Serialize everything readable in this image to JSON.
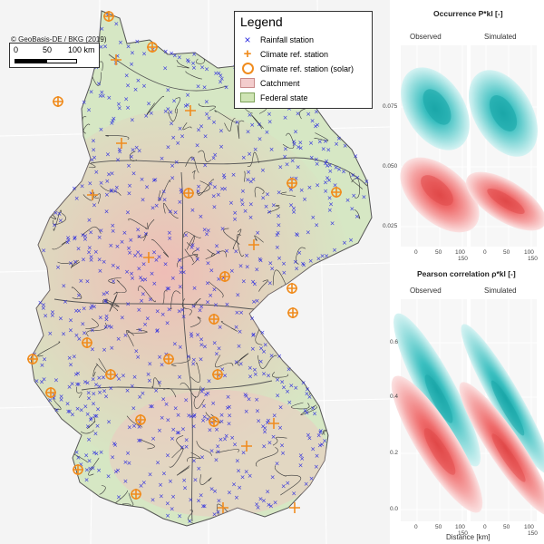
{
  "map": {
    "credit": "© GeoBasis-DE / BKG (2019)",
    "scale": {
      "l0": "0",
      "l1": "50",
      "l2": "100 km"
    },
    "legend": {
      "title": "Legend",
      "items": [
        {
          "label": "Rainfall station",
          "symbol": "x-icon",
          "color": "#2a2ae0"
        },
        {
          "label": "Climate ref. station",
          "symbol": "plus-icon",
          "color": "#f08c1e"
        },
        {
          "label": "Climate ref. station (solar)",
          "symbol": "circle-icon",
          "color": "#f08c1e"
        },
        {
          "label": "Catchment",
          "symbol": "pink-box-icon",
          "color": "#f3cccc"
        },
        {
          "label": "Federal state",
          "symbol": "green-box-icon",
          "color": "#cfe4b4"
        }
      ]
    },
    "colors": {
      "land": "#d6e7c4",
      "catchment": "#f0c8c4",
      "rain": "#2a2ae0",
      "climate": "#f08c1e"
    }
  },
  "panels": {
    "top": {
      "title": "Occurrence P*kl [-]",
      "strips": [
        "Observed",
        "Simulated"
      ],
      "yticks": [
        "0.075",
        "0.050",
        "0.025"
      ],
      "xticks": [
        "0",
        "50",
        "100",
        "150"
      ]
    },
    "bottom": {
      "title": "Pearson correlation ρ*kl [-]",
      "strips": [
        "Observed",
        "Simulated"
      ],
      "yticks": [
        "0.6",
        "0.4",
        "0.2",
        "0.0"
      ],
      "xticks": [
        "0",
        "50",
        "100",
        "150"
      ],
      "xlabel": "Distance [km]"
    },
    "colors": {
      "teal": "#3bbfc0",
      "red": "#ef6b6b"
    }
  }
}
